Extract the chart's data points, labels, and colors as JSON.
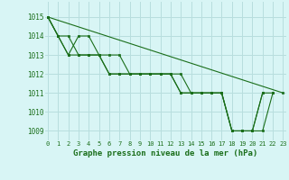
{
  "series": [
    {
      "x": [
        0,
        1,
        2,
        3,
        4,
        5,
        6,
        7,
        8,
        9,
        10,
        11,
        12,
        13,
        14,
        15,
        16,
        17,
        18,
        19,
        20,
        21,
        22,
        23
      ],
      "y": [
        1015,
        1014,
        1013,
        1013,
        1013,
        1013,
        1012,
        1012,
        1012,
        1012,
        1012,
        1012,
        1012,
        1011,
        1011,
        1011,
        1011,
        1011,
        1009,
        1009,
        1009,
        1011,
        1011,
        null
      ]
    },
    {
      "x": [
        0,
        1,
        2,
        3,
        4,
        5,
        6,
        7,
        8,
        9,
        10,
        11,
        12,
        13,
        14,
        15,
        16,
        17,
        18,
        19,
        20,
        21,
        22,
        23
      ],
      "y": [
        1015,
        1014,
        1013,
        1014,
        1014,
        1013,
        1013,
        1013,
        1012,
        1012,
        1012,
        1012,
        1012,
        1012,
        1011,
        1011,
        1011,
        1011,
        1009,
        1009,
        1009,
        1009,
        1011,
        null
      ]
    },
    {
      "x": [
        0,
        23
      ],
      "y": [
        1015,
        1011
      ]
    },
    {
      "x": [
        0,
        1,
        2,
        3,
        4,
        5,
        6,
        7,
        8,
        9,
        10,
        11,
        12,
        13,
        14,
        15,
        16,
        17,
        18,
        19,
        20,
        21
      ],
      "y": [
        1015,
        1014,
        1014,
        1013,
        1013,
        1013,
        1012,
        1012,
        1012,
        1012,
        1012,
        1012,
        1012,
        1011,
        1011,
        1011,
        1011,
        1011,
        1009,
        1009,
        1009,
        1011
      ]
    }
  ],
  "line_color": "#1a6e1a",
  "marker_color": "#1a6e1a",
  "bg_color": "#d8f5f5",
  "grid_color": "#b8dede",
  "text_color": "#1a6e1a",
  "xlabel": "Graphe pression niveau de la mer (hPa)",
  "ylim": [
    1008.5,
    1015.8
  ],
  "xlim": [
    -0.3,
    23.3
  ],
  "yticks": [
    1009,
    1010,
    1011,
    1012,
    1013,
    1014,
    1015
  ],
  "xticks": [
    0,
    1,
    2,
    3,
    4,
    5,
    6,
    7,
    8,
    9,
    10,
    11,
    12,
    13,
    14,
    15,
    16,
    17,
    18,
    19,
    20,
    21,
    22,
    23
  ],
  "xtick_labels": [
    "0",
    "1",
    "2",
    "3",
    "4",
    "5",
    "6",
    "7",
    "8",
    "9",
    "10",
    "11",
    "12",
    "13",
    "14",
    "15",
    "16",
    "17",
    "18",
    "19",
    "20",
    "21",
    "22",
    "23"
  ]
}
